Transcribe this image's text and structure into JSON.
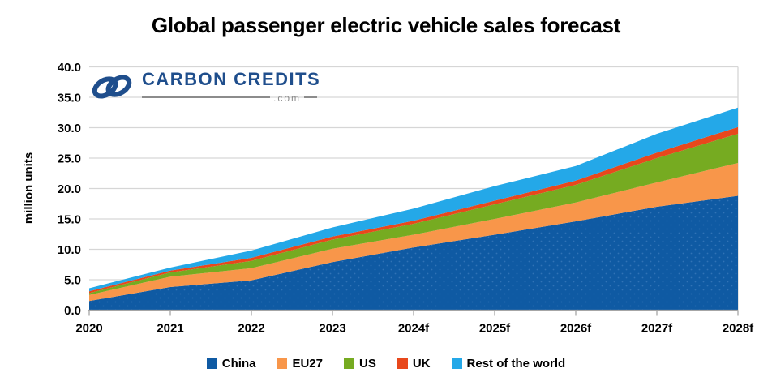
{
  "logo": {
    "brand": "CARBON CREDITS",
    "suffix": ".com",
    "color": "#1F4E8C"
  },
  "chart_data": {
    "type": "area",
    "stacked": true,
    "title": "Global passenger electric vehicle sales forecast",
    "xlabel": "",
    "ylabel": "million units",
    "ylim": [
      0,
      40
    ],
    "ytick_step": 5,
    "ytick_labels": [
      "0.0",
      "5.0",
      "10.0",
      "15.0",
      "20.0",
      "25.0",
      "30.0",
      "35.0",
      "40.0"
    ],
    "grid": "horizontal",
    "legend_position": "bottom",
    "categories": [
      "2020",
      "2021",
      "2022",
      "2023",
      "2024f",
      "2025f",
      "2026f",
      "2027f",
      "2028f"
    ],
    "series": [
      {
        "name": "China",
        "color": "#0F5AA3",
        "values": [
          1.5,
          3.8,
          4.9,
          7.9,
          10.3,
          12.4,
          14.6,
          17.0,
          18.8
        ]
      },
      {
        "name": "EU27",
        "color": "#F8964A",
        "values": [
          1.0,
          1.7,
          2.0,
          2.2,
          2.1,
          2.6,
          3.1,
          4.0,
          5.4
        ]
      },
      {
        "name": "US",
        "color": "#76AB21",
        "values": [
          0.3,
          0.7,
          1.2,
          1.5,
          1.8,
          2.4,
          2.9,
          4.0,
          4.8
        ]
      },
      {
        "name": "UK",
        "color": "#E8481C",
        "values": [
          0.3,
          0.3,
          0.5,
          0.5,
          0.5,
          0.6,
          0.7,
          0.9,
          1.1
        ]
      },
      {
        "name": "Rest of the world",
        "color": "#24A8E8",
        "values": [
          0.5,
          0.5,
          1.2,
          1.5,
          2.0,
          2.4,
          2.4,
          3.1,
          3.2
        ]
      }
    ],
    "totals": [
      3.6,
      7.0,
      9.8,
      13.6,
      16.7,
      20.4,
      23.7,
      29.0,
      33.3
    ]
  }
}
